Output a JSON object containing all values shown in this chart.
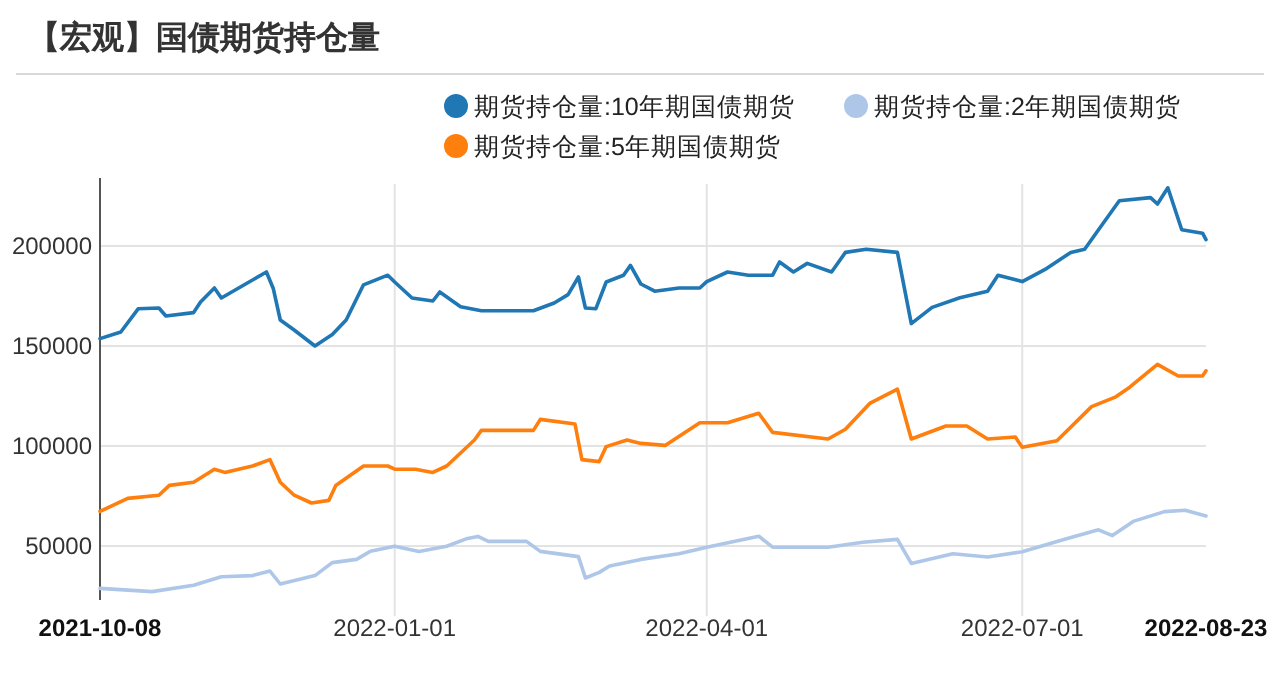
{
  "chart_data": {
    "type": "line",
    "title": "【宏观】国债期货持仓量",
    "legend": "top",
    "grid": true,
    "marker": "none",
    "line_style": "solid",
    "xlim": [
      "2021-10-08",
      "2022-08-23"
    ],
    "xticks": [
      "2021-10-08",
      "2022-01-01",
      "2022-04-01",
      "2022-07-01",
      "2022-08-23"
    ],
    "ylim": [
      23000,
      231000
    ],
    "yticks": [
      50000,
      100000,
      150000,
      200000
    ],
    "series": [
      {
        "name": "期货持仓量:10年期国债期货",
        "color": "#1f77b4",
        "x": [
          "2021-10-08",
          "2021-10-14",
          "2021-10-19",
          "2021-10-25",
          "2021-10-27",
          "2021-11-04",
          "2021-11-06",
          "2021-11-10",
          "2021-11-12",
          "2021-11-17",
          "2021-11-25",
          "2021-11-27",
          "2021-11-29",
          "2021-12-03",
          "2021-12-09",
          "2021-12-14",
          "2021-12-18",
          "2021-12-23",
          "2021-12-30",
          "2022-01-01",
          "2022-01-06",
          "2022-01-12",
          "2022-01-14",
          "2022-01-20",
          "2022-01-26",
          "2022-02-10",
          "2022-02-16",
          "2022-02-20",
          "2022-02-23",
          "2022-02-25",
          "2022-02-28",
          "2022-03-03",
          "2022-03-08",
          "2022-03-10",
          "2022-03-13",
          "2022-03-17",
          "2022-03-24",
          "2022-03-30",
          "2022-04-01",
          "2022-04-07",
          "2022-04-13",
          "2022-04-20",
          "2022-04-22",
          "2022-04-26",
          "2022-04-30",
          "2022-05-07",
          "2022-05-11",
          "2022-05-17",
          "2022-05-26",
          "2022-05-30",
          "2022-06-05",
          "2022-06-13",
          "2022-06-21",
          "2022-06-24",
          "2022-07-01",
          "2022-07-08",
          "2022-07-15",
          "2022-07-19",
          "2022-07-23",
          "2022-07-29",
          "2022-08-07",
          "2022-08-09",
          "2022-08-12",
          "2022-08-16",
          "2022-08-22",
          "2022-08-23"
        ],
        "values": [
          153700,
          157000,
          168600,
          169000,
          165000,
          166700,
          172000,
          179000,
          174000,
          179000,
          187000,
          178600,
          163000,
          158000,
          150000,
          155700,
          163000,
          180600,
          185400,
          182000,
          174000,
          172500,
          177000,
          169600,
          167600,
          167600,
          171500,
          175700,
          184500,
          169000,
          168600,
          182000,
          185400,
          190300,
          181000,
          177400,
          179000,
          179000,
          182200,
          187000,
          185400,
          185400,
          192000,
          187000,
          191300,
          187000,
          196800,
          198400,
          196800,
          161200,
          169300,
          174100,
          177400,
          185400,
          182200,
          188700,
          196800,
          198400,
          208100,
          222600,
          224200,
          221000,
          229100,
          208100,
          206400,
          203200
        ]
      },
      {
        "name": "期货持仓量:2年期国债期货",
        "color": "#aec7e8",
        "x": [
          "2021-10-08",
          "2021-10-23",
          "2021-11-04",
          "2021-11-12",
          "2021-11-21",
          "2021-11-26",
          "2021-11-29",
          "2021-12-09",
          "2021-12-14",
          "2021-12-21",
          "2021-12-25",
          "2022-01-01",
          "2022-01-08",
          "2022-01-16",
          "2022-01-22",
          "2022-01-25",
          "2022-01-28",
          "2022-02-08",
          "2022-02-12",
          "2022-02-23",
          "2022-02-25",
          "2022-03-01",
          "2022-03-04",
          "2022-03-13",
          "2022-03-24",
          "2022-04-01",
          "2022-04-16",
          "2022-04-20",
          "2022-05-06",
          "2022-05-16",
          "2022-05-26",
          "2022-05-30",
          "2022-06-11",
          "2022-06-21",
          "2022-07-01",
          "2022-07-13",
          "2022-07-23",
          "2022-07-27",
          "2022-08-02",
          "2022-08-11",
          "2022-08-17",
          "2022-08-23"
        ],
        "values": [
          28800,
          27200,
          30400,
          34600,
          35200,
          37500,
          31000,
          35200,
          41700,
          43300,
          47400,
          49900,
          47300,
          49900,
          53800,
          54800,
          52300,
          52300,
          47300,
          44700,
          34000,
          36800,
          40000,
          43300,
          46100,
          49400,
          54900,
          49400,
          49400,
          51900,
          53300,
          41300,
          46100,
          44500,
          47100,
          53300,
          58100,
          55200,
          62300,
          67200,
          67900,
          65000
        ]
      },
      {
        "name": "期货持仓量:5年期国债期货",
        "color": "#ff7f0e",
        "x": [
          "2021-10-08",
          "2021-10-16",
          "2021-10-25",
          "2021-10-28",
          "2021-11-04",
          "2021-11-10",
          "2021-11-13",
          "2021-11-21",
          "2021-11-26",
          "2021-11-29",
          "2021-12-03",
          "2021-12-08",
          "2021-12-13",
          "2021-12-15",
          "2021-12-23",
          "2021-12-30",
          "2022-01-01",
          "2022-01-07",
          "2022-01-12",
          "2022-01-16",
          "2022-01-24",
          "2022-01-26",
          "2022-02-10",
          "2022-02-12",
          "2022-02-22",
          "2022-02-24",
          "2022-03-01",
          "2022-03-03",
          "2022-03-09",
          "2022-03-13",
          "2022-03-20",
          "2022-03-30",
          "2022-04-07",
          "2022-04-16",
          "2022-04-20",
          "2022-05-06",
          "2022-05-11",
          "2022-05-18",
          "2022-05-26",
          "2022-05-30",
          "2022-06-09",
          "2022-06-15",
          "2022-06-21",
          "2022-06-29",
          "2022-07-01",
          "2022-07-11",
          "2022-07-21",
          "2022-07-28",
          "2022-08-01",
          "2022-08-09",
          "2022-08-15",
          "2022-08-22",
          "2022-08-23"
        ],
        "values": [
          67300,
          73800,
          75400,
          80300,
          81900,
          88400,
          86800,
          90000,
          93200,
          81900,
          75400,
          71500,
          72800,
          80300,
          90000,
          90000,
          88400,
          88400,
          86800,
          90000,
          103000,
          107800,
          107800,
          113300,
          111000,
          93200,
          92200,
          99700,
          103000,
          101300,
          100300,
          111600,
          111600,
          116400,
          106800,
          103500,
          108400,
          121300,
          128400,
          103500,
          110000,
          110000,
          103500,
          104500,
          99400,
          102600,
          119700,
          124600,
          129400,
          140800,
          135000,
          135000,
          137600
        ]
      }
    ]
  }
}
